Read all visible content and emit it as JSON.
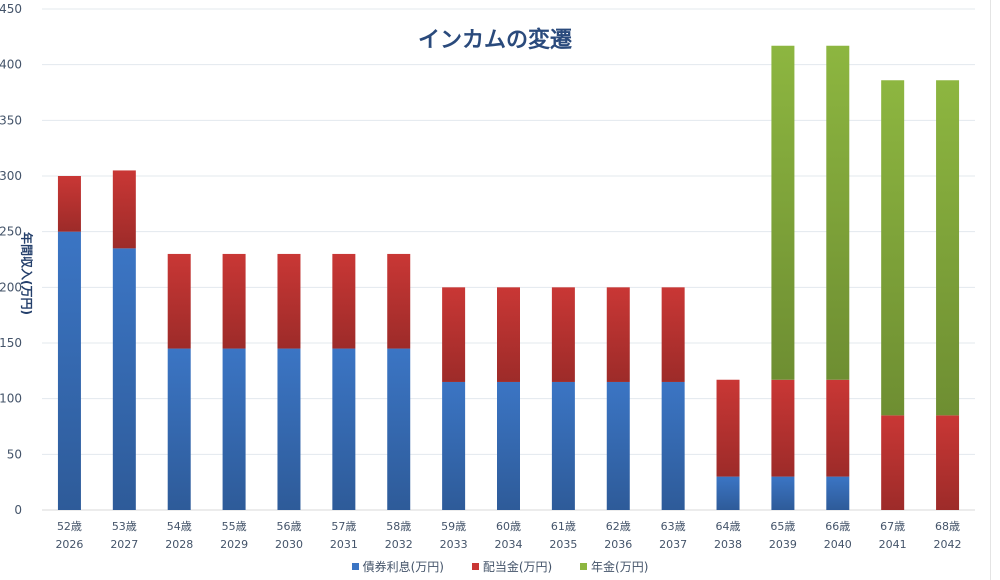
{
  "chart_data": {
    "type": "bar",
    "stacked": true,
    "title": "インカムの変遷",
    "xlabel": "",
    "ylabel": "年間収入(万円)",
    "ylim": [
      0,
      450
    ],
    "yticks": [
      0,
      50,
      100,
      150,
      200,
      250,
      300,
      350,
      400,
      450
    ],
    "grid": true,
    "legend_position": "bottom",
    "categories": [
      [
        "52歳",
        "2026"
      ],
      [
        "53歳",
        "2027"
      ],
      [
        "54歳",
        "2028"
      ],
      [
        "55歳",
        "2029"
      ],
      [
        "56歳",
        "2030"
      ],
      [
        "57歳",
        "2031"
      ],
      [
        "58歳",
        "2032"
      ],
      [
        "59歳",
        "2033"
      ],
      [
        "60歳",
        "2034"
      ],
      [
        "61歳",
        "2035"
      ],
      [
        "62歳",
        "2036"
      ],
      [
        "63歳",
        "2037"
      ],
      [
        "64歳",
        "2038"
      ],
      [
        "65歳",
        "2039"
      ],
      [
        "66歳",
        "2040"
      ],
      [
        "67歳",
        "2041"
      ],
      [
        "68歳",
        "2042"
      ]
    ],
    "series": [
      {
        "name": "債券利息(万円)",
        "color": "#3b75c4",
        "values": [
          250,
          235,
          145,
          145,
          145,
          145,
          145,
          115,
          115,
          115,
          115,
          115,
          30,
          30,
          30,
          0,
          0
        ]
      },
      {
        "name": "配当金(万円)",
        "color": "#c93735",
        "values": [
          50,
          70,
          85,
          85,
          85,
          85,
          85,
          85,
          85,
          85,
          85,
          85,
          87,
          87,
          87,
          85,
          85
        ]
      },
      {
        "name": "年金(万円)",
        "color": "#8db640",
        "values": [
          0,
          0,
          0,
          0,
          0,
          0,
          0,
          0,
          0,
          0,
          0,
          0,
          0,
          300,
          300,
          301,
          301
        ]
      }
    ]
  }
}
